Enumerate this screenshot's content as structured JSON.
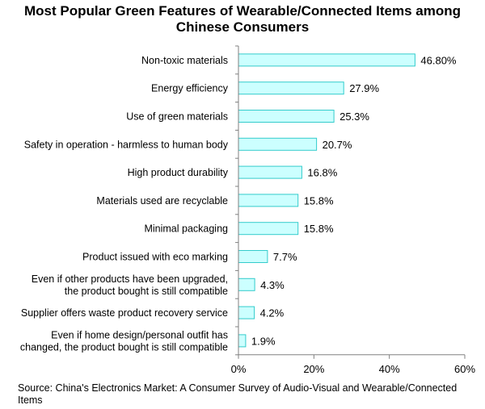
{
  "chart_data": {
    "type": "bar",
    "orientation": "horizontal",
    "title_lines": [
      "Most Popular Green Features of Wearable/Connected Items among",
      "Chinese Consumers"
    ],
    "categories": [
      [
        "Non-toxic materials"
      ],
      [
        "Energy efficiency"
      ],
      [
        "Use of green materials"
      ],
      [
        "Safety in operation - harmless to human body"
      ],
      [
        "High product durability"
      ],
      [
        "Materials used are recyclable"
      ],
      [
        "Minimal packaging"
      ],
      [
        "Product issued with eco marking"
      ],
      [
        "Even if other products have been upgraded,",
        "the product bought is still compatible"
      ],
      [
        "Supplier offers waste product recovery service"
      ],
      [
        "Even if home design/personal outfit has",
        "changed, the product bought is still compatible"
      ]
    ],
    "values": [
      46.8,
      27.9,
      25.3,
      20.7,
      16.8,
      15.8,
      15.8,
      7.7,
      4.3,
      4.2,
      1.9
    ],
    "value_labels": [
      "46.80%",
      "27.9%",
      "25.3%",
      "20.7%",
      "16.8%",
      "15.8%",
      "15.8%",
      "7.7%",
      "4.3%",
      "4.2%",
      "1.9%"
    ],
    "xlim": [
      0,
      60
    ],
    "xticks": [
      0,
      20,
      40,
      60
    ],
    "xtick_labels": [
      "0%",
      "20%",
      "40%",
      "60%"
    ],
    "grid": false,
    "colors": {
      "bar_fill": "#ccffff",
      "bar_stroke": "#33cccc",
      "axis": "#808080"
    }
  },
  "source": "Source: China's Electronics Market: A Consumer Survey of Audio-Visual and Wearable/Connected Items"
}
